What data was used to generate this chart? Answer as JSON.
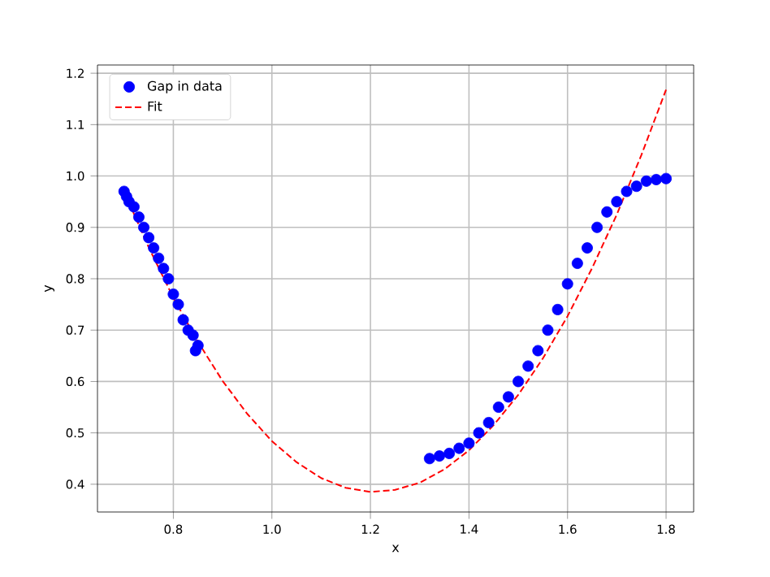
{
  "chart_data": {
    "type": "scatter",
    "xlabel": "x",
    "ylabel": "y",
    "xlim": [
      0.646,
      1.856
    ],
    "ylim": [
      0.346,
      1.216
    ],
    "xticks": [
      0.8,
      {
        "value": 1.0,
        "label": "1.0"
      },
      1.2,
      1.4,
      1.6,
      1.8
    ],
    "yticks": [
      0.4,
      0.5,
      0.6,
      0.7,
      0.8,
      0.9,
      {
        "value": 1.0,
        "label": "1.0"
      },
      1.1,
      1.2
    ],
    "grid": true,
    "legend": "top left",
    "series": [
      {
        "name": "Gap in data",
        "marker": "circle",
        "color": "#0000ff",
        "x": [
          0.7,
          0.705,
          0.71,
          0.72,
          0.73,
          0.74,
          0.75,
          0.76,
          0.77,
          0.78,
          0.79,
          0.8,
          0.81,
          0.82,
          0.83,
          0.84,
          0.845,
          0.85,
          1.32,
          1.34,
          1.36,
          1.38,
          1.4,
          1.42,
          1.44,
          1.46,
          1.48,
          1.5,
          1.52,
          1.54,
          1.56,
          1.58,
          1.6,
          1.62,
          1.64,
          1.66,
          1.68,
          1.7,
          1.72,
          1.74,
          1.76,
          1.78,
          1.8
        ],
        "values": [
          0.97,
          0.96,
          0.95,
          0.94,
          0.92,
          0.9,
          0.88,
          0.86,
          0.84,
          0.82,
          0.8,
          0.77,
          0.75,
          0.72,
          0.7,
          0.69,
          0.66,
          0.67,
          0.45,
          0.455,
          0.46,
          0.47,
          0.48,
          0.5,
          0.52,
          0.55,
          0.57,
          0.6,
          0.63,
          0.66,
          0.7,
          0.74,
          0.79,
          0.83,
          0.86,
          0.9,
          0.93,
          0.95,
          0.97,
          0.98,
          0.99,
          0.993,
          0.995
        ]
      },
      {
        "name": "Fit",
        "type": "line",
        "marker": "none",
        "line_style": "dashed",
        "color": "#ff0000",
        "x": [
          0.7,
          0.75,
          0.8,
          0.85,
          0.9,
          0.95,
          1.0,
          1.05,
          1.1,
          1.15,
          1.2,
          1.25,
          1.3,
          1.35,
          1.4,
          1.45,
          1.5,
          1.55,
          1.6,
          1.65,
          1.7,
          1.75,
          1.8
        ],
        "values": [
          0.97,
          0.861,
          0.763,
          0.677,
          0.601,
          0.537,
          0.484,
          0.443,
          0.412,
          0.393,
          0.385,
          0.389,
          0.403,
          0.429,
          0.466,
          0.515,
          0.574,
          0.645,
          0.727,
          0.821,
          0.925,
          1.041,
          1.168
        ]
      }
    ]
  }
}
